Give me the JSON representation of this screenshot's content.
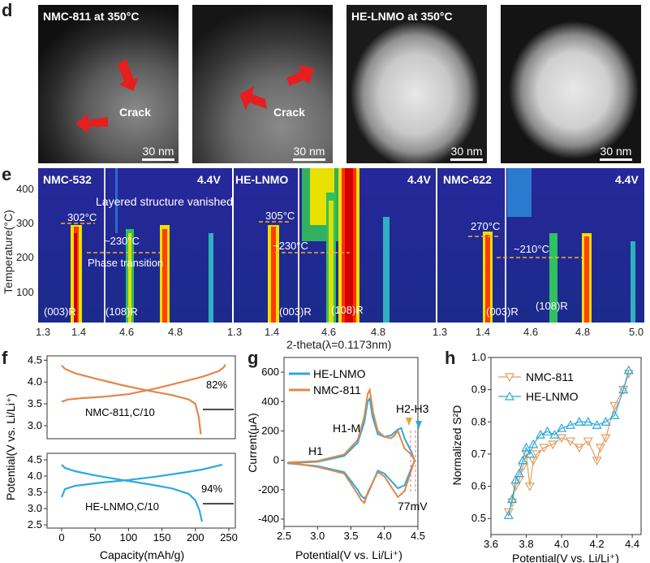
{
  "panel_d": {
    "letter": "d",
    "images": [
      {
        "label": "NMC-811 at 350°C",
        "scale": "30 nm",
        "annotation": "Crack"
      },
      {
        "label": "",
        "scale": "30 nm",
        "annotation": "Crack"
      },
      {
        "label": "HE-LNMO at 350°C",
        "scale": "30 nm",
        "annotation": ""
      },
      {
        "label": "",
        "scale": "30 nm",
        "annotation": ""
      }
    ]
  },
  "panel_e": {
    "letter": "e",
    "ylabel": "Temperature(°C)",
    "yticks": [
      "400",
      "300",
      "200",
      "100"
    ],
    "xlabel": "2-theta(λ=0.1173nm)",
    "xticks": [
      "1.3",
      "1.4",
      "4.6",
      "4.8",
      "1.3",
      "1.4",
      "4.6",
      "4.8",
      "1.3",
      "1.4",
      "4.6",
      "4.8",
      "5.0"
    ],
    "maps": [
      {
        "title": "NMC-532",
        "voltage": "4.4V",
        "top_temp": "302°C",
        "mid_temp": "~230°C",
        "peak1": "(003)R",
        "peak2": "(108)R"
      },
      {
        "title": "HE-LNMO",
        "voltage": "4.4V",
        "top_temp": "305°C",
        "mid_temp": "~230°C",
        "peak1": "(003)R",
        "peak2": "(108)R"
      },
      {
        "title": "NMC-622",
        "voltage": "4.4V",
        "top_temp": "270°C",
        "mid_temp": "~210°C",
        "peak1": "(003)R",
        "peak2": "(108)R"
      }
    ],
    "notes": {
      "vanished": "Layered structure vanished",
      "transition": "Phase transition"
    }
  },
  "chart_data": [
    {
      "type": "line",
      "panel": "f",
      "title": "",
      "xlabel": "Capacity(mAh/g)",
      "ylabel": "Potential(V vs. Li/Li⁺)",
      "xlim": [
        0,
        250
      ],
      "xticks": [
        "0",
        "50",
        "100",
        "150",
        "200",
        "250"
      ],
      "subplots": [
        {
          "name": "NMC-811,C/10",
          "yticks": [
            "4.5",
            "4.0",
            "3.5",
            "3.0"
          ],
          "ylim": [
            2.7,
            4.6
          ],
          "retention": "82%",
          "color": "#e0884a",
          "charge": {
            "x": [
              0,
              10,
              30,
              60,
              100,
              140,
              180,
              210,
              220,
              235,
              242,
              245
            ],
            "y": [
              3.55,
              3.6,
              3.63,
              3.66,
              3.72,
              3.85,
              4.0,
              4.12,
              4.17,
              4.25,
              4.33,
              4.4
            ]
          },
          "discharge": {
            "x": [
              0,
              5,
              20,
              50,
              90,
              130,
              165,
              190,
              200,
              205,
              208
            ],
            "y": [
              4.38,
              4.3,
              4.2,
              4.08,
              3.93,
              3.8,
              3.7,
              3.6,
              3.5,
              3.2,
              2.8
            ]
          }
        },
        {
          "name": "HE-LNMO,C/10",
          "yticks": [
            "4.5",
            "4.0",
            "3.5",
            "3.0",
            "2.5"
          ],
          "ylim": [
            2.4,
            4.7
          ],
          "retention": "94%",
          "color": "#2ea8dc",
          "charge": {
            "x": [
              0,
              5,
              20,
              60,
              100,
              140,
              180,
              210,
              230,
              240
            ],
            "y": [
              3.35,
              3.6,
              3.7,
              3.8,
              3.88,
              3.98,
              4.1,
              4.2,
              4.3,
              4.35
            ]
          },
          "discharge": {
            "x": [
              0,
              5,
              20,
              50,
              90,
              130,
              165,
              190,
              200,
              206,
              210
            ],
            "y": [
              4.35,
              4.25,
              4.15,
              4.02,
              3.88,
              3.75,
              3.62,
              3.45,
              3.25,
              2.95,
              2.6
            ]
          }
        }
      ]
    },
    {
      "type": "line",
      "panel": "g",
      "title": "",
      "xlabel": "Potential(V vs. Li/Li⁺)",
      "ylabel": "Current(μA)",
      "xlim": [
        2.5,
        4.5
      ],
      "ylim": [
        -450,
        700
      ],
      "xticks": [
        "2.5",
        "3.0",
        "3.5",
        "4.0",
        "4.5"
      ],
      "yticks": [
        "600",
        "400",
        "200",
        "0",
        "-200",
        "-400"
      ],
      "annotations": [
        "H1",
        "H1-M",
        "H2-H3",
        "77mV"
      ],
      "series": [
        {
          "name": "HE-LNMO",
          "color": "#2ea8dc",
          "x": [
            2.55,
            3.0,
            3.4,
            3.6,
            3.7,
            3.75,
            3.78,
            3.82,
            3.9,
            4.0,
            4.1,
            4.2,
            4.25,
            4.3,
            4.4,
            4.45,
            4.3,
            4.2,
            4.1,
            4.0,
            3.9,
            3.75,
            3.7,
            3.65,
            3.6,
            3.4,
            3.0,
            2.55
          ],
          "y": [
            -20,
            -10,
            30,
            120,
            260,
            400,
            420,
            300,
            180,
            160,
            170,
            210,
            220,
            150,
            60,
            0,
            -170,
            -190,
            -140,
            -90,
            -70,
            -230,
            -260,
            -240,
            -200,
            -80,
            -40,
            -20
          ]
        },
        {
          "name": "NMC-811",
          "color": "#e0884a",
          "x": [
            2.55,
            3.0,
            3.4,
            3.6,
            3.7,
            3.75,
            3.78,
            3.83,
            3.9,
            4.0,
            4.1,
            4.15,
            4.2,
            4.25,
            4.3,
            4.4,
            4.45,
            4.3,
            4.2,
            4.1,
            4.0,
            3.9,
            3.75,
            3.7,
            3.65,
            3.6,
            3.4,
            3.0,
            2.55
          ],
          "y": [
            -15,
            -5,
            40,
            140,
            300,
            450,
            480,
            330,
            200,
            160,
            150,
            170,
            200,
            140,
            80,
            40,
            0,
            -210,
            -250,
            -180,
            -110,
            -80,
            -220,
            -290,
            -270,
            -230,
            -90,
            -45,
            -15
          ]
        }
      ]
    },
    {
      "type": "line",
      "panel": "h",
      "title": "",
      "xlabel": "Potential(V vs. Li/Li⁺)",
      "ylabel": "Normalized S²D",
      "xlim": [
        3.6,
        4.45
      ],
      "ylim": [
        0.45,
        1.0
      ],
      "xticks": [
        "3.6",
        "3.8",
        "4.0",
        "4.2",
        "4.4"
      ],
      "yticks": [
        "1.0",
        "0.9",
        "0.8",
        "0.7",
        "0.6",
        "0.5"
      ],
      "series": [
        {
          "name": "NMC-811",
          "color": "#e0a060",
          "marker": "triangle-down",
          "x": [
            3.7,
            3.72,
            3.74,
            3.76,
            3.78,
            3.8,
            3.82,
            3.84,
            3.86,
            3.9,
            3.95,
            4.0,
            4.05,
            4.1,
            4.15,
            4.2,
            4.22,
            4.25,
            4.3,
            4.35,
            4.38
          ],
          "y": [
            0.52,
            0.55,
            0.6,
            0.62,
            0.66,
            0.7,
            0.6,
            0.68,
            0.7,
            0.72,
            0.73,
            0.75,
            0.74,
            0.72,
            0.74,
            0.68,
            0.72,
            0.75,
            0.85,
            0.9,
            0.95
          ]
        },
        {
          "name": "HE-LNMO",
          "color": "#2ea8dc",
          "marker": "triangle-up",
          "x": [
            3.7,
            3.72,
            3.74,
            3.76,
            3.78,
            3.8,
            3.82,
            3.84,
            3.88,
            3.92,
            3.96,
            4.0,
            4.05,
            4.1,
            4.15,
            4.2,
            4.25,
            4.3,
            4.35,
            4.38
          ],
          "y": [
            0.51,
            0.56,
            0.62,
            0.64,
            0.68,
            0.72,
            0.7,
            0.73,
            0.76,
            0.77,
            0.76,
            0.78,
            0.79,
            0.8,
            0.8,
            0.79,
            0.8,
            0.82,
            0.9,
            0.96
          ]
        }
      ]
    }
  ]
}
